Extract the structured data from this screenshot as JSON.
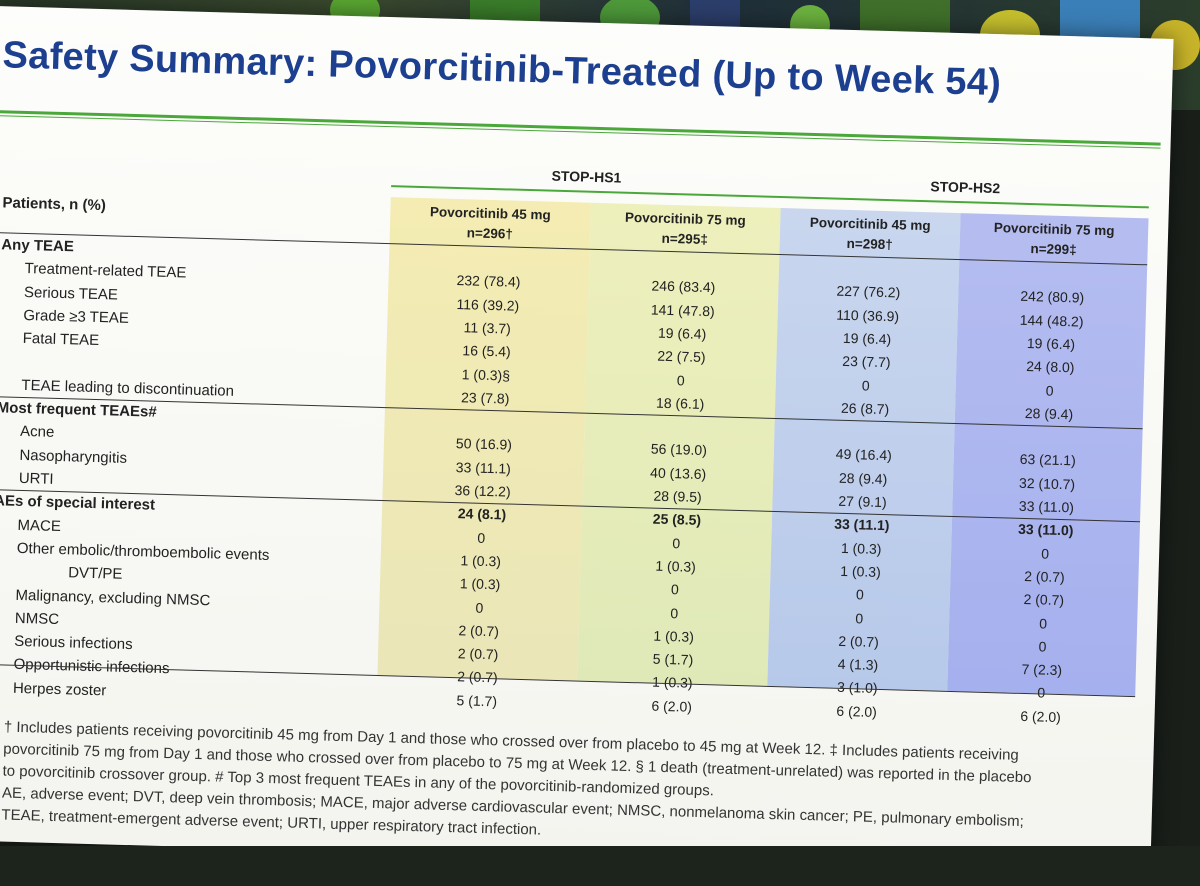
{
  "slide": {
    "title": "Safety Summary: Povorcitinib-Treated (Up to Week 54)"
  },
  "table": {
    "row_header_label": "Patients, n (%)",
    "studies": [
      "STOP-HS1",
      "STOP-HS2"
    ],
    "columns": [
      {
        "name": "Povorcitinib 45 mg",
        "n": "n=296†"
      },
      {
        "name": "Povorcitinib 75 mg",
        "n": "n=295‡"
      },
      {
        "name": "Povorcitinib 45 mg",
        "n": "n=298†"
      },
      {
        "name": "Povorcitinib 75 mg",
        "n": "n=299‡"
      }
    ],
    "rows": [
      {
        "label": "Any TEAE",
        "section": true,
        "values": [
          "",
          "",
          "",
          ""
        ]
      },
      {
        "label": "Treatment-related TEAE",
        "values": [
          "232 (78.4)",
          "246 (83.4)",
          "227 (76.2)",
          "242 (80.9)"
        ]
      },
      {
        "label": "Serious TEAE",
        "values": [
          "116 (39.2)",
          "141 (47.8)",
          "110 (36.9)",
          "144 (48.2)"
        ]
      },
      {
        "label": "Grade ≥3 TEAE",
        "values": [
          "11 (3.7)",
          "19 (6.4)",
          "19 (6.4)",
          "19 (6.4)"
        ]
      },
      {
        "label": "Fatal TEAE",
        "values": [
          "16 (5.4)",
          "22 (7.5)",
          "23 (7.7)",
          "24 (8.0)"
        ]
      },
      {
        "label": "",
        "values": [
          "1 (0.3)§",
          "0",
          "0",
          "0"
        ]
      },
      {
        "label": "TEAE leading to discontinuation",
        "values": [
          "23 (7.8)",
          "18 (6.1)",
          "26 (8.7)",
          "28 (9.4)"
        ]
      },
      {
        "label": "Most frequent TEAEs#",
        "section": true,
        "values": [
          "",
          "",
          "",
          ""
        ]
      },
      {
        "label": "Acne",
        "values": [
          "50 (16.9)",
          "56 (19.0)",
          "49 (16.4)",
          "63 (21.1)"
        ]
      },
      {
        "label": "Nasopharyngitis",
        "values": [
          "33 (11.1)",
          "40 (13.6)",
          "28 (9.4)",
          "32 (10.7)"
        ]
      },
      {
        "label": "URTI",
        "values": [
          "36 (12.2)",
          "28 (9.5)",
          "27 (9.1)",
          "33 (11.0)"
        ]
      },
      {
        "label": "AEs of special interest",
        "section": true,
        "values": [
          "24 (8.1)",
          "25 (8.5)",
          "33 (11.1)",
          "33 (11.0)"
        ]
      },
      {
        "label": "MACE",
        "values": [
          "0",
          "0",
          "1 (0.3)",
          "0"
        ]
      },
      {
        "label": "Other embolic/thromboembolic events",
        "values": [
          "1 (0.3)",
          "1 (0.3)",
          "1 (0.3)",
          "2 (0.7)"
        ]
      },
      {
        "label": "DVT/PE",
        "values": [
          "1 (0.3)",
          "0",
          "0",
          "2 (0.7)"
        ]
      },
      {
        "label": "Malignancy, excluding NMSC",
        "values": [
          "0",
          "0",
          "0",
          "0"
        ]
      },
      {
        "label": "NMSC",
        "values": [
          "2 (0.7)",
          "1 (0.3)",
          "2 (0.7)",
          "0"
        ]
      },
      {
        "label": "Serious infections",
        "values": [
          "2 (0.7)",
          "5 (1.7)",
          "4 (1.3)",
          "7 (2.3)"
        ]
      },
      {
        "label": "Opportunistic infections",
        "values": [
          "2 (0.7)",
          "1 (0.3)",
          "3 (1.0)",
          "0"
        ]
      },
      {
        "label": "Herpes zoster",
        "values": [
          "5 (1.7)",
          "6 (2.0)",
          "6 (2.0)",
          "6 (2.0)"
        ]
      }
    ]
  },
  "footnotes": [
    "† Includes patients receiving povorcitinib 45 mg from Day 1 and those who crossed over from placebo to 45 mg at Week 12. ‡ Includes patients receiving",
    "povorcitinib 75 mg from Day 1 and those who crossed over from placebo to 75 mg at Week 12. § 1 death (treatment-unrelated) was reported in the placebo",
    "to povorcitinib crossover group. # Top 3 most frequent TEAEs in any of the povorcitinib-randomized groups.",
    "AE, adverse event; DVT, deep vein thrombosis; MACE, major adverse cardiovascular event; NMSC, nonmelanoma skin cancer; PE, pulmonary embolism;",
    "TEAE, treatment-emergent adverse event; URTI, upper respiratory tract infection."
  ],
  "colors": {
    "title": "#1c3f8f",
    "rule": "#4aa83a"
  }
}
